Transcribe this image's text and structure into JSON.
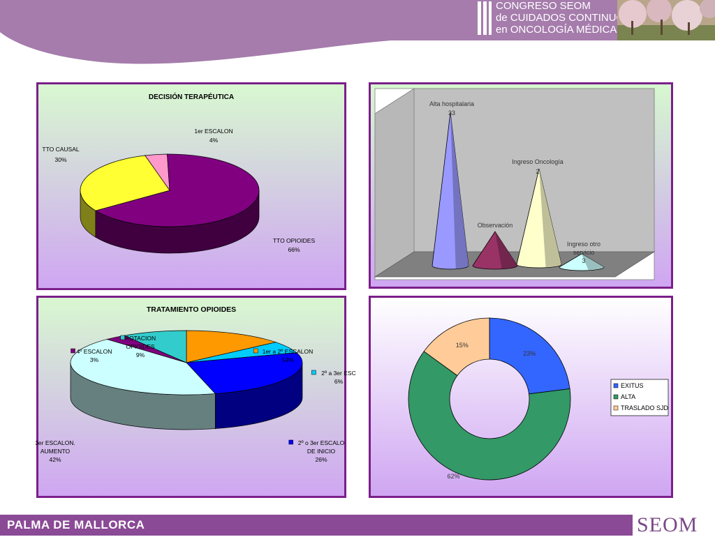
{
  "header": {
    "title_lines": [
      "CONGRESO SEOM",
      "de CUIDADOS CONTINUOS",
      "en ONCOLOGÍA MÉDICA"
    ]
  },
  "footer": {
    "location": "PALMA DE MALLORCA",
    "logo_text": "SEOM"
  },
  "colors": {
    "banner": "#a57cac",
    "frame": "#7b1f8a",
    "footer": "#8a4a96"
  },
  "chart_data": [
    {
      "id": "decision",
      "type": "pie",
      "title": "DECISIÓN TERAPÉUTICA",
      "slices": [
        {
          "label": "1er ESCALON",
          "value": 4,
          "pct": "4%",
          "color": "#ff99cc"
        },
        {
          "label": "TTO OPIOIDES",
          "value": 66,
          "pct": "66%",
          "color": "#800080"
        },
        {
          "label": "TTO CAUSAL",
          "value": 30,
          "pct": "30%",
          "color": "#ffff33"
        }
      ]
    },
    {
      "id": "destino",
      "type": "bar",
      "categories": [
        "Alta hospitalaria",
        "Observación",
        "Ingreso Oncología",
        "Ingreso otro servicio"
      ],
      "values": [
        33,
        null,
        2,
        3
      ],
      "value_labels": [
        "33",
        "",
        "2",
        "3"
      ],
      "colors": [
        "#9999ff",
        "#993366",
        "#ffffcc",
        "#ccffff"
      ],
      "shape": "cone",
      "grid": false
    },
    {
      "id": "opioides",
      "type": "pie",
      "title": "TRATAMIENTO OPIOIDES",
      "slices": [
        {
          "label": "1er a 2º ESCALON",
          "value": 14,
          "pct": "14%",
          "color": "#ff9900"
        },
        {
          "label": "2º a 3er ESC",
          "value": 6,
          "pct": "6%",
          "color": "#00ccff"
        },
        {
          "label": "2º o 3er ESCALO DE INICIO",
          "value": 26,
          "pct": "26%",
          "color": "#0000ff"
        },
        {
          "label": "3er ESCALON. AUMENTO",
          "value": 42,
          "pct": "42%",
          "color": "#ccffff"
        },
        {
          "label": "4º ESCALON",
          "value": 3,
          "pct": "3%",
          "color": "#800080"
        },
        {
          "label": "ROTACION OPIOIDES",
          "value": 9,
          "pct": "9%",
          "color": "#33cccc"
        }
      ]
    },
    {
      "id": "evolucion",
      "type": "pie",
      "subtype": "doughnut",
      "slices": [
        {
          "label": "EXITUS",
          "value": 23,
          "pct": "23%",
          "color": "#3366ff"
        },
        {
          "label": "ALTA",
          "value": 62,
          "pct": "62%",
          "color": "#339966"
        },
        {
          "label": "TRASLADO SJD",
          "value": 15,
          "pct": "15%",
          "color": "#ffcc99"
        }
      ],
      "legend": "right"
    }
  ]
}
